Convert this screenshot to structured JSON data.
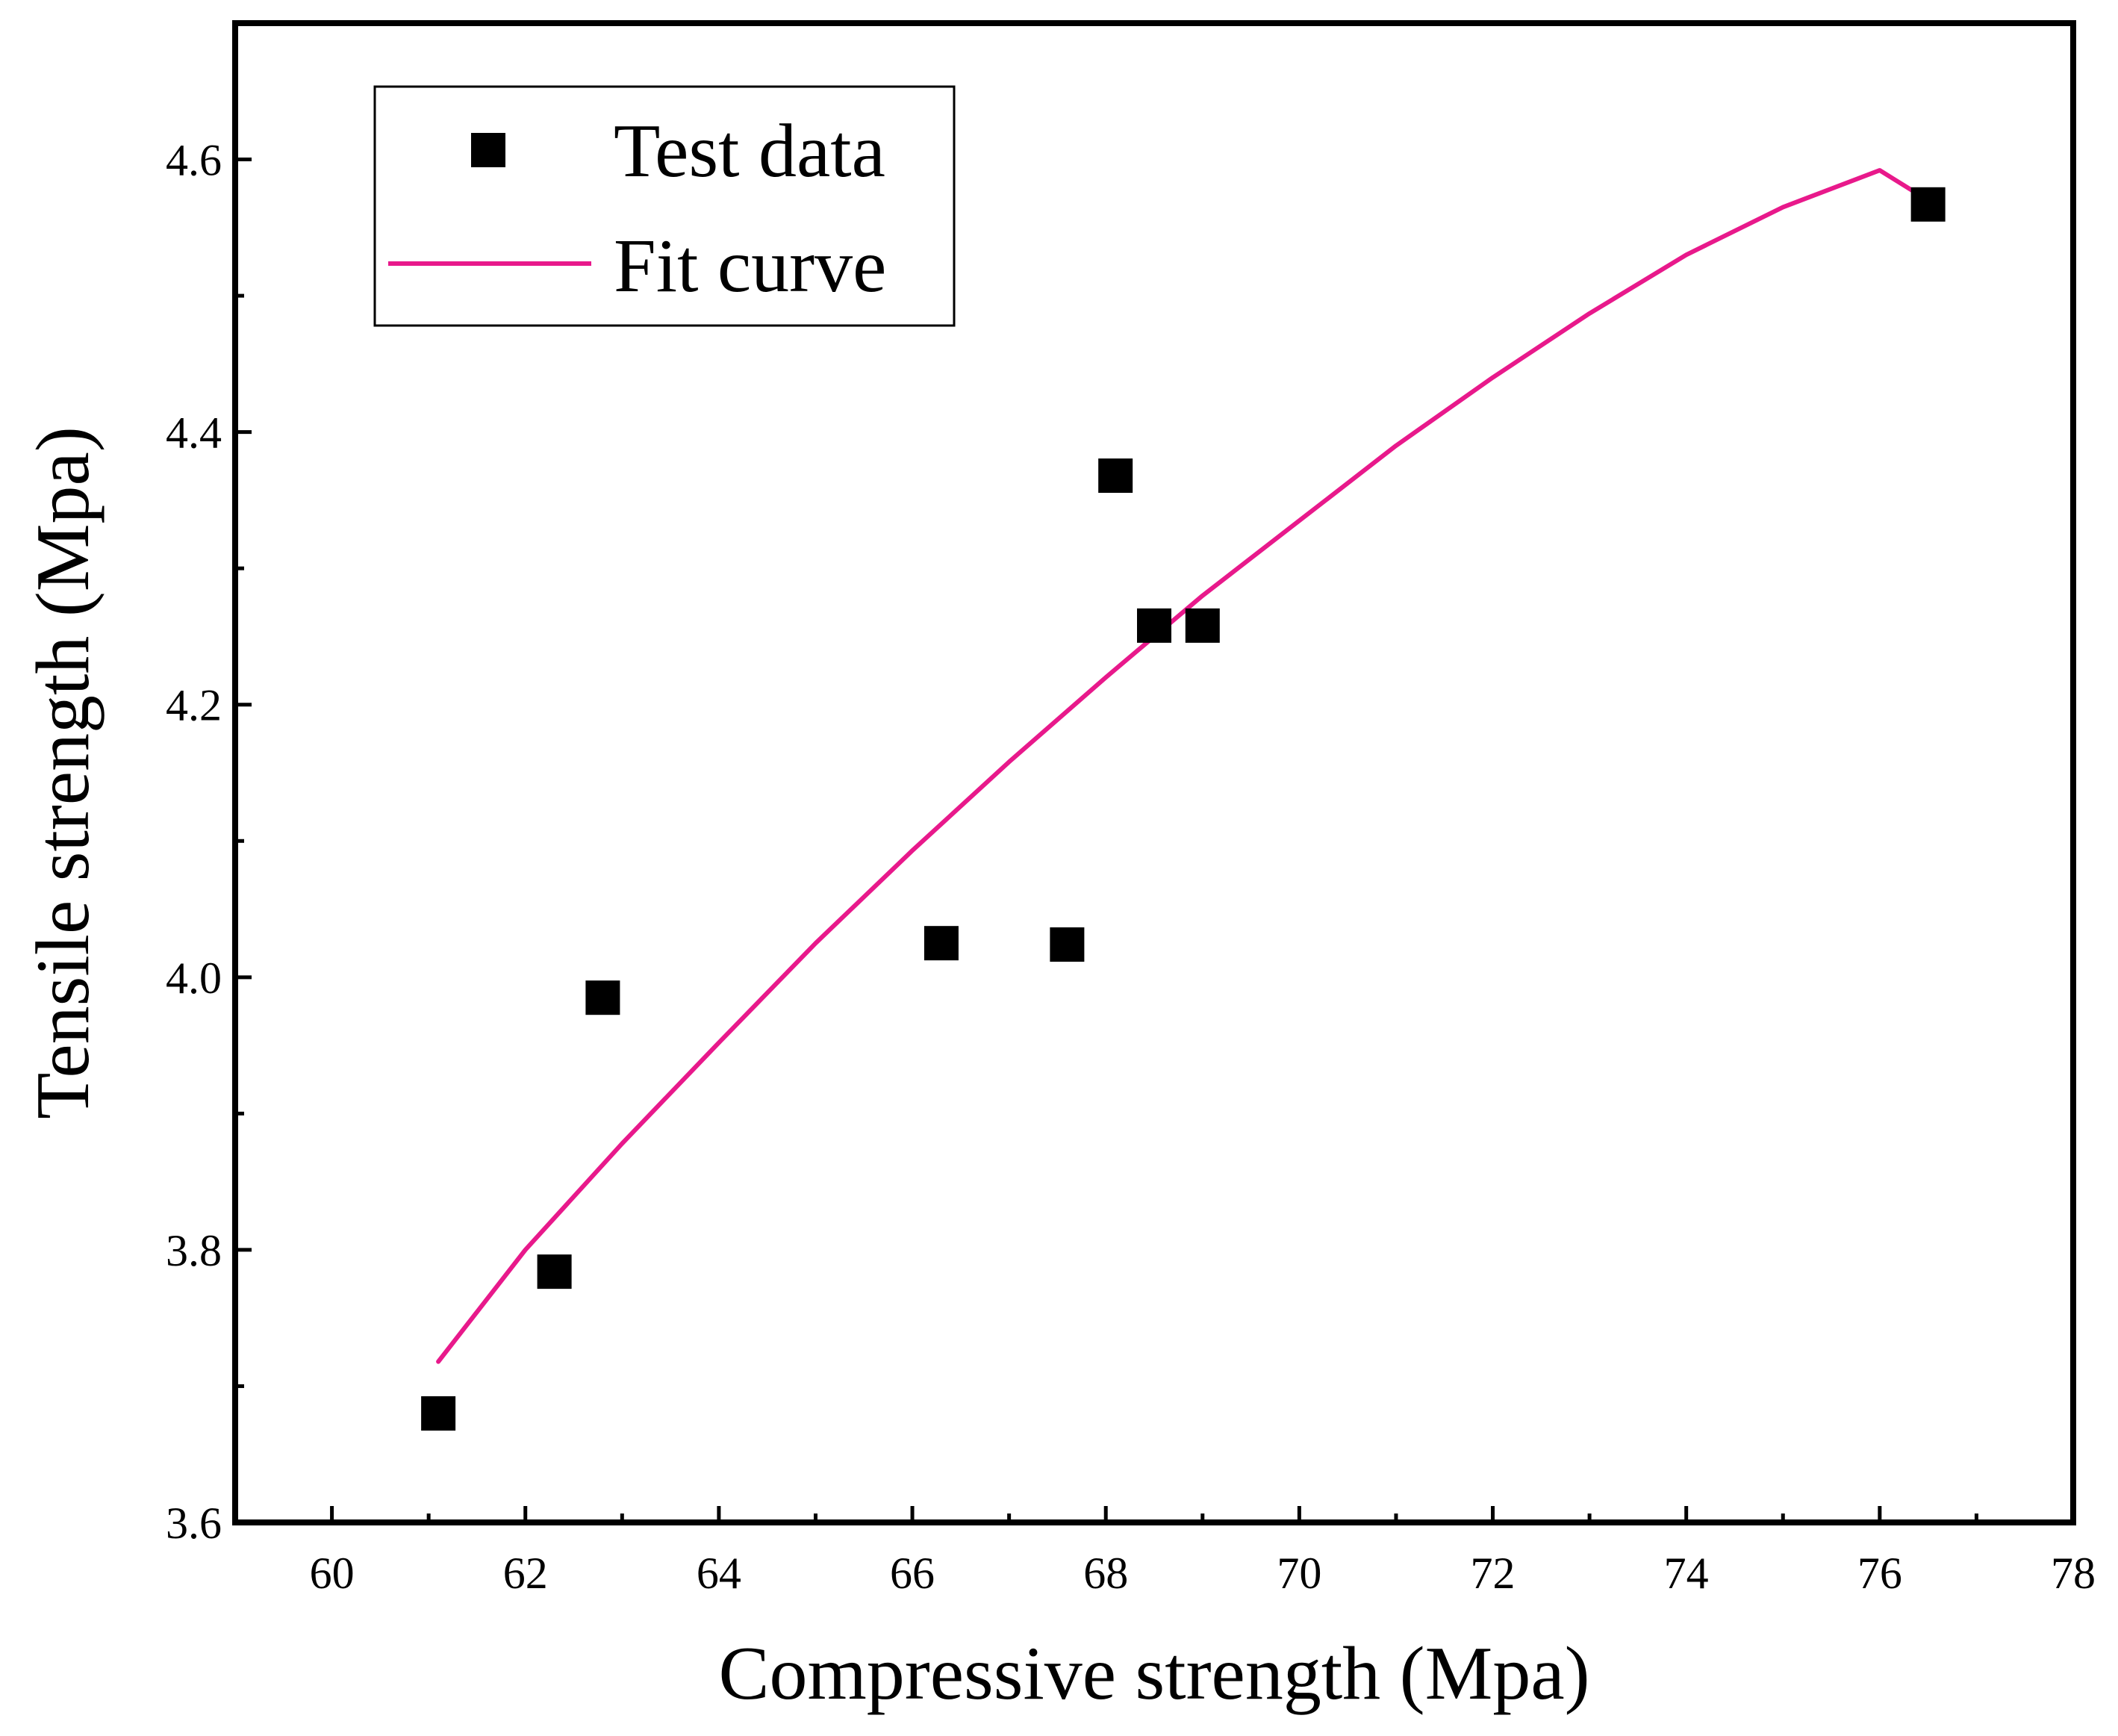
{
  "chart_data": {
    "type": "scatter",
    "title": "",
    "xlabel": "Compressive strength (Mpa)",
    "ylabel": "Tensile strength (Mpa)",
    "xlim": [
      59,
      78
    ],
    "ylim": [
      3.6,
      4.7
    ],
    "x_ticks": [
      60,
      62,
      64,
      66,
      68,
      70,
      72,
      74,
      76,
      78
    ],
    "x_tick_labels": [
      "60",
      "62",
      "64",
      "66",
      "68",
      "70",
      "72",
      "74",
      "76",
      "78"
    ],
    "y_ticks": [
      3.6,
      3.8,
      4.0,
      4.2,
      4.4,
      4.6
    ],
    "y_tick_labels": [
      "3.6",
      "3.8",
      "4.0",
      "4.2",
      "4.4",
      "4.6"
    ],
    "grid": false,
    "legend_position": "top-left",
    "series": [
      {
        "name": "Test data",
        "type": "scatter",
        "marker": "square",
        "color": "#000000",
        "x": [
          61.1,
          62.3,
          62.8,
          66.3,
          67.6,
          68.1,
          68.5,
          69.0,
          76.5
        ],
        "y": [
          3.68,
          3.784,
          3.985,
          4.025,
          4.024,
          4.368,
          4.258,
          4.258,
          4.567
        ]
      },
      {
        "name": "Fit curve",
        "type": "line",
        "color": "#e8198b",
        "x": [
          61.1,
          62.0,
          63.0,
          64.0,
          65.0,
          66.0,
          67.0,
          68.0,
          69.0,
          70.0,
          71.0,
          72.0,
          73.0,
          74.0,
          75.0,
          76.0,
          76.5
        ],
        "y": [
          3.718,
          3.8,
          3.878,
          3.952,
          4.025,
          4.093,
          4.158,
          4.22,
          4.28,
          4.335,
          4.39,
          4.44,
          4.487,
          4.53,
          4.565,
          4.592,
          4.57
        ]
      }
    ]
  }
}
